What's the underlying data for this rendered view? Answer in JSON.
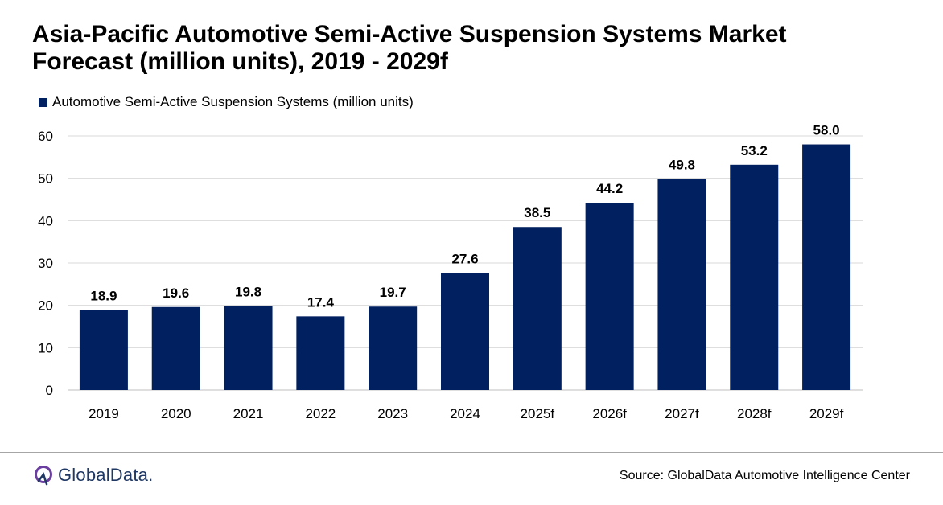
{
  "chart_data": {
    "type": "bar",
    "title_lines": [
      "Asia-Pacific Automotive Semi-Active Suspension Systems Market",
      "Forecast (million units), 2019 - 2029f"
    ],
    "categories": [
      "2019",
      "2020",
      "2021",
      "2022",
      "2023",
      "2024",
      "2025f",
      "2026f",
      "2027f",
      "2028f",
      "2029f"
    ],
    "series": [
      {
        "name": "Automotive Semi-Active Suspension Systems (million units)",
        "values": [
          18.9,
          19.6,
          19.8,
          17.4,
          19.7,
          27.6,
          38.5,
          44.2,
          49.8,
          53.2,
          58.0
        ],
        "labels": [
          "18.9",
          "19.6",
          "19.8",
          "17.4",
          "19.7",
          "27.6",
          "38.5",
          "44.2",
          "49.8",
          "53.2",
          "58.0"
        ]
      }
    ],
    "y_ticks": [
      "0",
      "10",
      "20",
      "30",
      "40",
      "50",
      "60"
    ],
    "ylim": [
      0,
      60
    ],
    "xlabel": "",
    "ylabel": "",
    "grid": true,
    "legend": "top-left",
    "bar_color": "#002060",
    "grid_color": "#d9d9d9"
  },
  "footer": {
    "logo_text": "GlobalData.",
    "logo_icon": "globaldata-logo-icon",
    "source": "Source: GlobalData Automotive Intelligence Center"
  }
}
